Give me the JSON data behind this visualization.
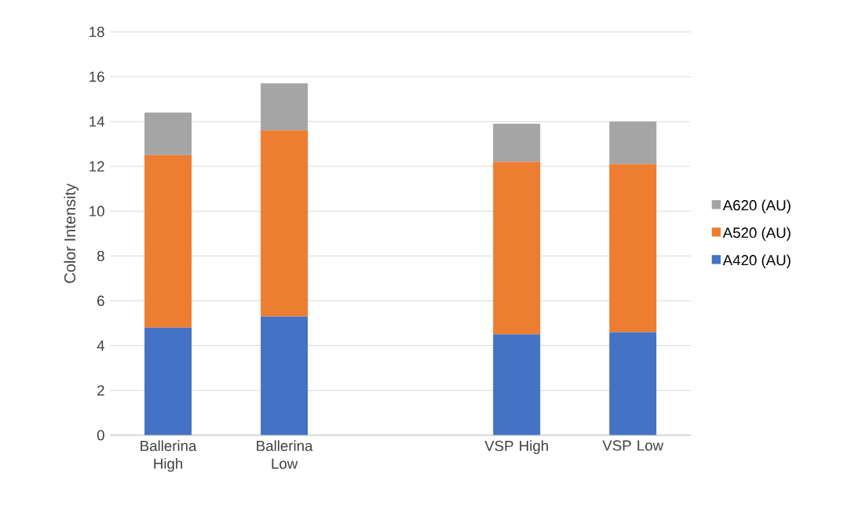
{
  "chart_data": {
    "type": "bar",
    "stacked": true,
    "ylabel": "Color Intensity",
    "categories": [
      "Ballerina High",
      "Ballerina Low",
      null,
      "VSP High",
      "VSP Low"
    ],
    "series": [
      {
        "name": "A420 (AU)",
        "color": "#4472c4",
        "values": [
          4.8,
          5.3,
          null,
          4.5,
          4.6
        ]
      },
      {
        "name": "A520 (AU)",
        "color": "#ed7d31",
        "values": [
          7.7,
          8.3,
          null,
          7.7,
          7.5
        ]
      },
      {
        "name": "A620 (AU)",
        "color": "#a5a5a5",
        "values": [
          1.9,
          2.1,
          null,
          1.7,
          1.9
        ]
      }
    ],
    "ylim": [
      0,
      18
    ],
    "yticks": [
      0,
      2,
      4,
      6,
      8,
      10,
      12,
      14,
      16,
      18
    ],
    "grid": "y",
    "legend": "right"
  }
}
